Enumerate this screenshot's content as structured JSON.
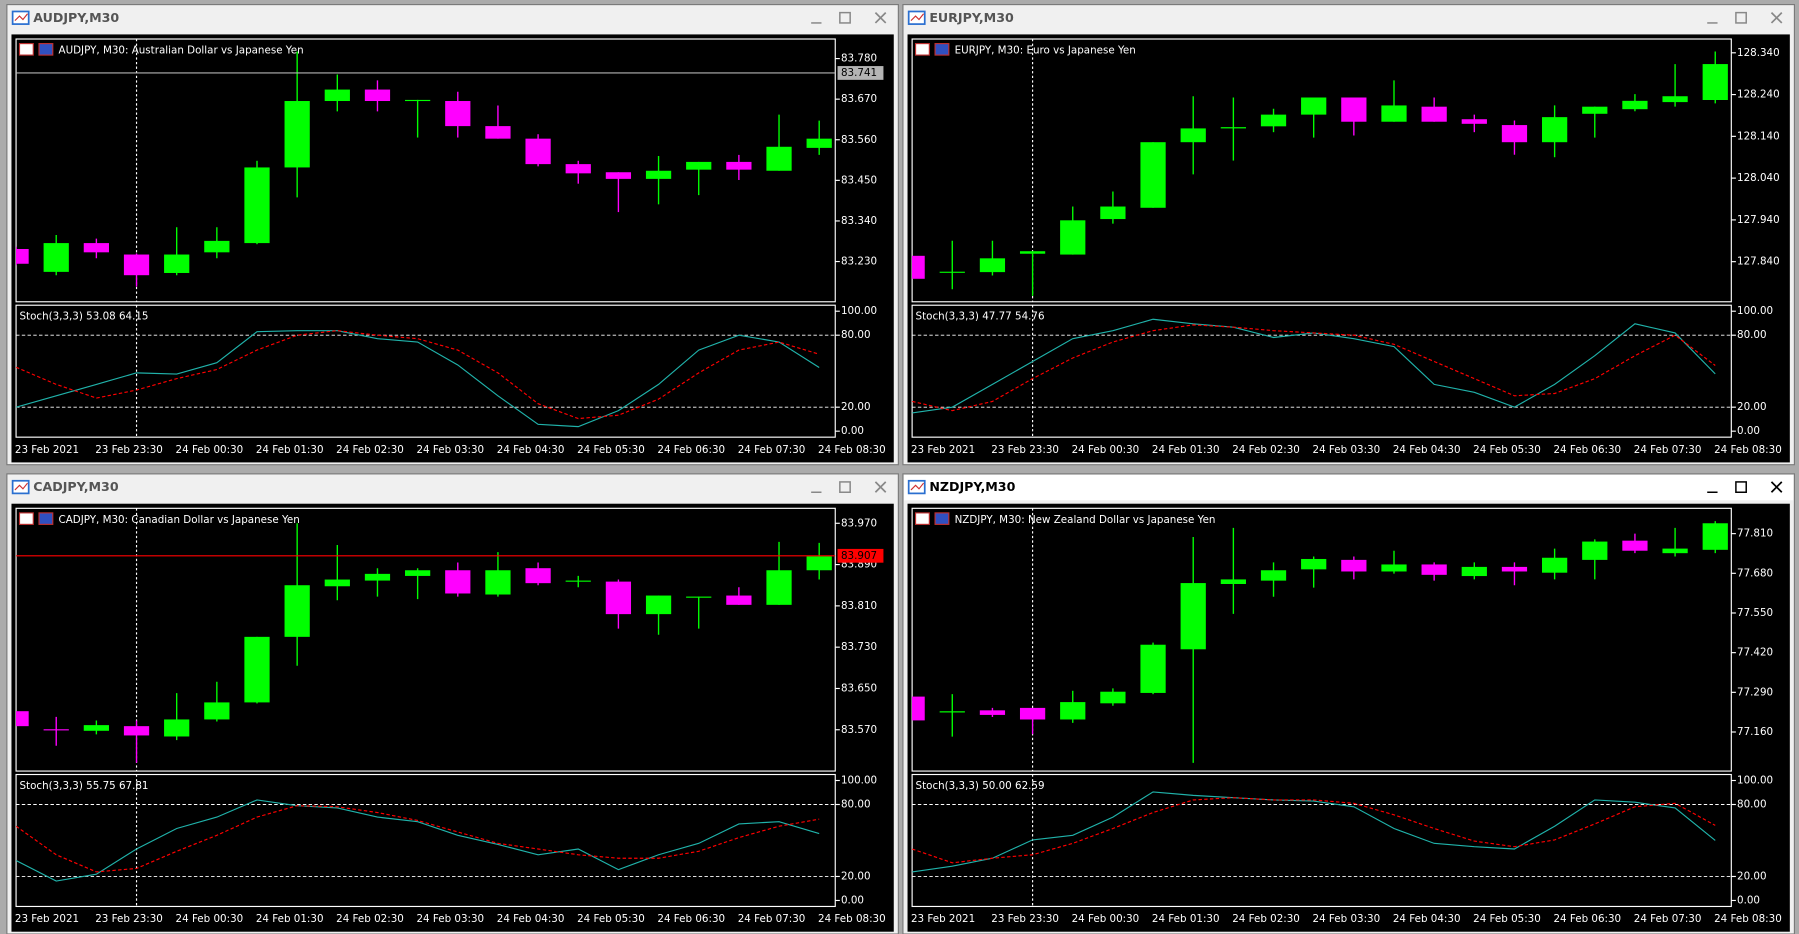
{
  "chart_data": [
    {
      "window_title": "AUDJPY,M30",
      "active": false,
      "type": "candlestick",
      "title": "AUDJPY, M30:  Australian Dollar vs Japanese Yen",
      "categories": [
        "23 Feb 2021",
        null,
        "23 Feb 23:30",
        null,
        "24 Feb 00:30",
        null,
        "24 Feb 01:30",
        null,
        "24 Feb 02:30",
        null,
        "24 Feb 03:30",
        null,
        "24 Feb 04:30",
        null,
        "24 Feb 05:30",
        null,
        "24 Feb 06:30",
        null,
        "24 Feb 07:30",
        null,
        "24 Feb 08:30"
      ],
      "open": [
        83.264,
        83.202,
        83.28,
        83.249,
        83.199,
        83.255,
        83.28,
        83.485,
        83.665,
        83.696,
        83.665,
        83.665,
        83.597,
        83.563,
        83.494,
        83.472,
        83.454,
        83.479,
        83.5,
        83.476,
        83.538
      ],
      "high": [
        83.27,
        83.302,
        83.292,
        83.252,
        83.323,
        83.323,
        83.503,
        83.799,
        83.737,
        83.721,
        83.668,
        83.69,
        83.653,
        83.575,
        83.503,
        83.472,
        83.516,
        83.5,
        83.519,
        83.628,
        83.612
      ],
      "low": [
        83.22,
        83.193,
        83.239,
        83.162,
        83.193,
        83.239,
        83.277,
        83.404,
        83.637,
        83.637,
        83.566,
        83.566,
        83.563,
        83.488,
        83.441,
        83.364,
        83.385,
        83.41,
        83.451,
        83.476,
        83.519
      ],
      "close": [
        83.224,
        83.28,
        83.255,
        83.193,
        83.249,
        83.286,
        83.485,
        83.665,
        83.696,
        83.665,
        83.668,
        83.597,
        83.563,
        83.494,
        83.469,
        83.454,
        83.476,
        83.5,
        83.479,
        83.541,
        83.563
      ],
      "up_color": "#00ff00",
      "down_color": "#ff00ff",
      "ylim": [
        83.121,
        83.833
      ],
      "yticks": [
        {
          "value": 83.23,
          "label": "83.230"
        },
        {
          "value": 83.34,
          "label": "83.340"
        },
        {
          "value": 83.45,
          "label": "83.450"
        },
        {
          "value": 83.56,
          "label": "83.560"
        },
        {
          "value": 83.67,
          "label": "83.670"
        },
        {
          "value": 83.78,
          "label": "83.780"
        }
      ],
      "last_price": 83.741,
      "last_price_color": "#b4b4b4",
      "indicator": {
        "type": "line",
        "title": "Stoch(3,3,3) 53.08 64.15",
        "ylim": [
          -5,
          105
        ],
        "yticks": [
          {
            "value": 0,
            "label": "0.00"
          },
          {
            "value": 20,
            "label": "20.00"
          },
          {
            "value": 80,
            "label": "80.00"
          },
          {
            "value": 100,
            "label": "100.00"
          }
        ],
        "levels": [
          20,
          80
        ],
        "series": [
          {
            "color": "#20b2aa",
            "dashed": false,
            "values": [
              20,
              29.5,
              39,
              48.6,
              47.6,
              57.1,
              82.9,
              83.8,
              83.8,
              77.1,
              74.3,
              55.2,
              29.5,
              5.7,
              3.8,
              17.1,
              39,
              67.6,
              80,
              74.3,
              53.08
            ]
          },
          {
            "color": "#ff0000",
            "dashed": true,
            "values": [
              53.3,
              39,
              27.6,
              34.3,
              43.8,
              51.4,
              67.6,
              80,
              83.8,
              80,
              77.1,
              67.6,
              48.6,
              22.9,
              10.5,
              13.3,
              26.7,
              48.6,
              67.6,
              74.3,
              64.15
            ]
          }
        ]
      }
    },
    {
      "window_title": "EURJPY,M30",
      "active": false,
      "type": "candlestick",
      "title": "EURJPY, M30:  Euro vs Japanese Yen",
      "categories": [
        "23 Feb 2021",
        null,
        "23 Feb 23:30",
        null,
        "24 Feb 00:30",
        null,
        "24 Feb 01:30",
        null,
        "24 Feb 02:30",
        null,
        "24 Feb 03:30",
        null,
        "24 Feb 04:30",
        null,
        "24 Feb 05:30",
        null,
        "24 Feb 06:30",
        null,
        "24 Feb 07:30",
        null,
        "24 Feb 08:30"
      ],
      "open": [
        127.854,
        127.815,
        127.815,
        127.859,
        127.857,
        127.942,
        127.969,
        128.126,
        128.159,
        128.164,
        128.192,
        128.233,
        128.175,
        128.211,
        128.181,
        128.167,
        128.126,
        128.194,
        128.205,
        128.222,
        128.227
      ],
      "high": [
        127.854,
        127.89,
        127.89,
        127.865,
        127.972,
        128.008,
        128.126,
        128.236,
        128.233,
        128.206,
        128.233,
        128.233,
        128.274,
        128.233,
        128.192,
        128.178,
        128.214,
        128.211,
        128.241,
        128.313,
        128.343
      ],
      "low": [
        127.799,
        127.774,
        127.807,
        127.758,
        127.857,
        127.931,
        127.969,
        128.049,
        128.082,
        128.15,
        128.137,
        128.142,
        128.175,
        128.175,
        128.15,
        128.096,
        128.09,
        128.137,
        128.2,
        128.211,
        128.219
      ],
      "close": [
        127.799,
        127.816,
        127.848,
        127.865,
        127.939,
        127.972,
        128.126,
        128.159,
        128.162,
        128.192,
        128.233,
        128.175,
        128.214,
        128.175,
        128.17,
        128.126,
        128.186,
        128.211,
        128.225,
        128.236,
        128.313
      ],
      "up_color": "#00ff00",
      "down_color": "#ff00ff",
      "ylim": [
        127.744,
        128.373
      ],
      "yticks": [
        {
          "value": 127.84,
          "label": "127.840"
        },
        {
          "value": 127.94,
          "label": "127.940"
        },
        {
          "value": 128.04,
          "label": "128.040"
        },
        {
          "value": 128.14,
          "label": "128.140"
        },
        {
          "value": 128.24,
          "label": "128.240"
        },
        {
          "value": 128.34,
          "label": "128.340"
        }
      ],
      "indicator": {
        "type": "line",
        "title": "Stoch(3,3,3) 47.77 54.76",
        "ylim": [
          -5,
          105
        ],
        "yticks": [
          {
            "value": 0,
            "label": "0.00"
          },
          {
            "value": 20,
            "label": "20.00"
          },
          {
            "value": 80,
            "label": "80.00"
          },
          {
            "value": 100,
            "label": "100.00"
          }
        ],
        "levels": [
          20,
          80
        ],
        "series": [
          {
            "color": "#20b2aa",
            "dashed": false,
            "values": [
              15.2,
              20,
              39,
              58.1,
              77.1,
              83.8,
              93.3,
              89.5,
              86.7,
              78.1,
              81.9,
              77.1,
              70.5,
              39,
              32.4,
              20,
              39,
              62.9,
              89.5,
              81.9,
              47.77
            ]
          },
          {
            "color": "#ff0000",
            "dashed": true,
            "values": [
              24.8,
              17.1,
              24.8,
              43.8,
              61,
              74.3,
              83.8,
              88.6,
              86.7,
              83.8,
              81.9,
              80,
              72.4,
              58.1,
              43.8,
              29.5,
              31.4,
              43.8,
              62.9,
              80,
              54.76
            ]
          }
        ]
      }
    },
    {
      "window_title": "CADJPY,M30",
      "active": false,
      "type": "candlestick",
      "title": "CADJPY, M30:  Canadian Dollar vs Japanese Yen",
      "categories": [
        "23 Feb 2021",
        null,
        "23 Feb 23:30",
        null,
        "24 Feb 00:30",
        null,
        "24 Feb 01:30",
        null,
        "24 Feb 02:30",
        null,
        "24 Feb 03:30",
        null,
        "24 Feb 04:30",
        null,
        "24 Feb 05:30",
        null,
        "24 Feb 06:30",
        null,
        "24 Feb 07:30",
        null,
        "24 Feb 08:30"
      ],
      "open": [
        83.606,
        83.571,
        83.568,
        83.577,
        83.557,
        83.59,
        83.623,
        83.75,
        83.848,
        83.859,
        83.868,
        83.879,
        83.832,
        83.883,
        83.857,
        83.857,
        83.794,
        83.826,
        83.83,
        83.812,
        83.879
      ],
      "high": [
        83.606,
        83.595,
        83.588,
        83.588,
        83.641,
        83.663,
        83.75,
        83.97,
        83.928,
        83.883,
        83.883,
        83.894,
        83.914,
        83.894,
        83.868,
        83.861,
        83.83,
        83.828,
        83.846,
        83.934,
        83.932
      ],
      "low": [
        83.577,
        83.539,
        83.561,
        83.506,
        83.55,
        83.586,
        83.621,
        83.694,
        83.821,
        83.828,
        83.823,
        83.828,
        83.828,
        83.85,
        83.846,
        83.766,
        83.754,
        83.766,
        83.812,
        83.812,
        83.861
      ],
      "close": [
        83.577,
        83.569,
        83.579,
        83.559,
        83.59,
        83.623,
        83.75,
        83.85,
        83.861,
        83.872,
        83.879,
        83.834,
        83.879,
        83.854,
        83.859,
        83.794,
        83.83,
        83.828,
        83.812,
        83.879,
        83.906
      ],
      "up_color": "#00ff00",
      "down_color": "#ff00ff",
      "ylim": [
        83.49,
        83.999
      ],
      "yticks": [
        {
          "value": 83.57,
          "label": "83.570"
        },
        {
          "value": 83.65,
          "label": "83.650"
        },
        {
          "value": 83.73,
          "label": "83.730"
        },
        {
          "value": 83.81,
          "label": "83.810"
        },
        {
          "value": 83.89,
          "label": "83.890"
        },
        {
          "value": 83.97,
          "label": "83.970"
        }
      ],
      "last_price": 83.907,
      "last_price_color": "#ff0000",
      "indicator": {
        "type": "line",
        "title": "Stoch(3,3,3) 55.75 67.81",
        "ylim": [
          -5,
          105
        ],
        "yticks": [
          {
            "value": 0,
            "label": "0.00"
          },
          {
            "value": 20,
            "label": "20.00"
          },
          {
            "value": 80,
            "label": "80.00"
          },
          {
            "value": 100,
            "label": "100.00"
          }
        ],
        "levels": [
          20,
          80
        ],
        "series": [
          {
            "color": "#20b2aa",
            "dashed": false,
            "values": [
              33.3,
              16.2,
              21.9,
              42.9,
              60,
              69.5,
              83.8,
              79,
              77.1,
              69.5,
              65.7,
              54.3,
              46.7,
              38.1,
              42.9,
              25.7,
              38.1,
              47.6,
              63.8,
              65.7,
              55.75
            ]
          },
          {
            "color": "#ff0000",
            "dashed": true,
            "values": [
              61.9,
              38.1,
              23.8,
              26.7,
              41,
              54.3,
              69.5,
              79,
              78.1,
              73.3,
              66.7,
              57.1,
              47.6,
              42.9,
              38.1,
              35.2,
              35.2,
              41,
              52.4,
              61.9,
              67.81
            ]
          }
        ]
      }
    },
    {
      "window_title": "NZDJPY,M30",
      "active": true,
      "type": "candlestick",
      "title": "NZDJPY, M30:  New Zealand Dollar vs Japanese Yen",
      "categories": [
        "23 Feb 2021",
        null,
        "23 Feb 23:30",
        null,
        "24 Feb 00:30",
        null,
        "24 Feb 01:30",
        null,
        "24 Feb 02:30",
        null,
        "24 Feb 03:30",
        null,
        "24 Feb 04:30",
        null,
        "24 Feb 05:30",
        null,
        "24 Feb 06:30",
        null,
        "24 Feb 07:30",
        null,
        "24 Feb 08:30"
      ],
      "open": [
        77.276,
        77.224,
        77.231,
        77.239,
        77.201,
        77.254,
        77.288,
        77.431,
        77.645,
        77.656,
        77.693,
        77.724,
        77.686,
        77.709,
        77.671,
        77.701,
        77.682,
        77.724,
        77.787,
        77.746,
        77.757
      ],
      "high": [
        77.276,
        77.284,
        77.239,
        77.239,
        77.295,
        77.303,
        77.453,
        77.799,
        77.829,
        77.716,
        77.735,
        77.735,
        77.754,
        77.716,
        77.716,
        77.716,
        77.761,
        77.791,
        77.81,
        77.829,
        77.851
      ],
      "low": [
        77.198,
        77.145,
        77.209,
        77.153,
        77.19,
        77.246,
        77.284,
        77.059,
        77.547,
        77.603,
        77.633,
        77.66,
        77.679,
        77.656,
        77.66,
        77.641,
        77.66,
        77.66,
        77.746,
        77.735,
        77.746
      ],
      "close": [
        77.198,
        77.228,
        77.216,
        77.201,
        77.258,
        77.292,
        77.446,
        77.648,
        77.66,
        77.69,
        77.727,
        77.686,
        77.709,
        77.675,
        77.701,
        77.686,
        77.731,
        77.784,
        77.754,
        77.761,
        77.844
      ],
      "up_color": "#00ff00",
      "down_color": "#ff00ff",
      "ylim": [
        77.032,
        77.893
      ],
      "yticks": [
        {
          "value": 77.16,
          "label": "77.160"
        },
        {
          "value": 77.29,
          "label": "77.290"
        },
        {
          "value": 77.42,
          "label": "77.420"
        },
        {
          "value": 77.55,
          "label": "77.550"
        },
        {
          "value": 77.68,
          "label": "77.680"
        },
        {
          "value": 77.81,
          "label": "77.810"
        }
      ],
      "indicator": {
        "type": "line",
        "title": "Stoch(3,3,3) 50.00 62.59",
        "ylim": [
          -5,
          105
        ],
        "yticks": [
          {
            "value": 0,
            "label": "0.00"
          },
          {
            "value": 20,
            "label": "20.00"
          },
          {
            "value": 80,
            "label": "80.00"
          },
          {
            "value": 100,
            "label": "100.00"
          }
        ],
        "levels": [
          20,
          80
        ],
        "series": [
          {
            "color": "#20b2aa",
            "dashed": false,
            "values": [
              23.8,
              28.6,
              35.2,
              50.5,
              54.3,
              69.5,
              90.5,
              87.6,
              85.7,
              83.8,
              82.9,
              78.1,
              60,
              47.6,
              44.8,
              42.9,
              61.9,
              83.8,
              81.9,
              77.1,
              50
            ]
          },
          {
            "color": "#ff0000",
            "dashed": true,
            "values": [
              42.9,
              31.4,
              35.2,
              38.1,
              47.6,
              60,
              73.3,
              83.8,
              85.7,
              83.8,
              83.8,
              81,
              71.4,
              60,
              49.5,
              44.8,
              50.5,
              63.8,
              78.1,
              81,
              62.59
            ]
          }
        ]
      }
    }
  ]
}
